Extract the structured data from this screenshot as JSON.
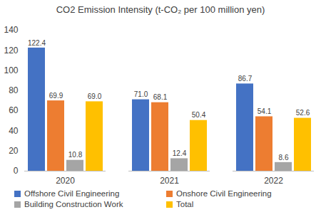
{
  "chart_data": {
    "type": "bar",
    "title": "CO2 Emission Intensity (t-CO₂ per 100 million yen)",
    "categories": [
      "2020",
      "2021",
      "2022"
    ],
    "series": [
      {
        "name": "Offshore Civil Engineering",
        "color": "#4472c4",
        "values": [
          122.4,
          71.0,
          86.7
        ],
        "value_labels": [
          "122.4",
          "71.0",
          "86.7"
        ]
      },
      {
        "name": "Onshore Civil Engineering",
        "color": "#ed7d31",
        "values": [
          69.9,
          68.1,
          54.1
        ],
        "value_labels": [
          "69.9",
          "68.1",
          "54.1"
        ]
      },
      {
        "name": "Building Construction Work",
        "color": "#a5a5a5",
        "values": [
          10.8,
          12.4,
          8.6
        ],
        "value_labels": [
          "10.8",
          "12.4",
          "8.6"
        ]
      },
      {
        "name": "Total",
        "color": "#ffc000",
        "values": [
          69.0,
          50.4,
          52.6
        ],
        "value_labels": [
          "69.0",
          "50.4",
          "52.6"
        ]
      }
    ],
    "ylim": [
      0,
      140
    ],
    "yticks": [
      0,
      20,
      40,
      60,
      80,
      100,
      120,
      140
    ],
    "grid": false,
    "data_labels": true,
    "legend": "bottom"
  }
}
